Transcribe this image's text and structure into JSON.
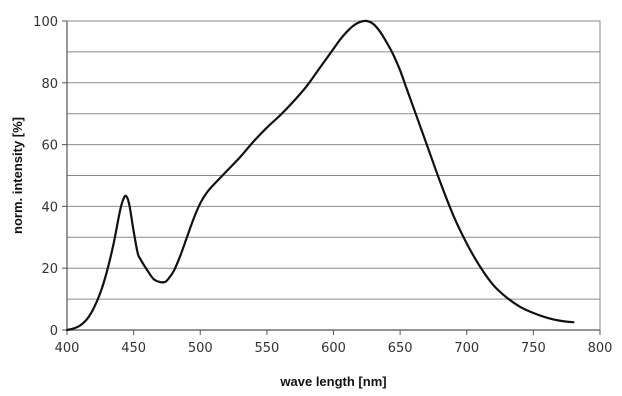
{
  "chart_data": {
    "type": "line",
    "title": "",
    "xlabel": "wave length [nm]",
    "ylabel": "norm. intensity [%]",
    "xlim": [
      400,
      800
    ],
    "ylim": [
      0,
      100
    ],
    "xticks": [
      400,
      450,
      500,
      550,
      600,
      650,
      700,
      750,
      800
    ],
    "yticks": [
      0,
      20,
      40,
      60,
      80,
      100
    ],
    "grid": {
      "horizontal": true,
      "vertical": false,
      "minor_horizontal_step": 10
    },
    "legend": "none",
    "series": [
      {
        "color": "#111111",
        "x": [
          400,
          405,
          410,
          415,
          420,
          425,
          430,
          435,
          440,
          443,
          445,
          447,
          450,
          453,
          455,
          460,
          465,
          470,
          473,
          475,
          480,
          485,
          490,
          495,
          500,
          505,
          510,
          520,
          530,
          540,
          550,
          560,
          570,
          580,
          590,
          600,
          605,
          610,
          615,
          620,
          625,
          630,
          635,
          640,
          645,
          650,
          655,
          660,
          665,
          670,
          680,
          690,
          700,
          710,
          720,
          730,
          740,
          750,
          760,
          770,
          780
        ],
        "y": [
          0,
          0.5,
          1.5,
          3.5,
          7,
          12,
          19,
          28,
          39,
          43,
          43,
          40,
          32,
          25,
          23,
          19.5,
          16.5,
          15.5,
          15.5,
          16,
          19,
          24,
          30,
          36,
          41,
          44.5,
          47,
          51.5,
          56,
          61,
          65.5,
          69.5,
          74,
          79,
          85,
          91,
          94,
          96.5,
          98.5,
          99.7,
          100,
          99,
          96.5,
          93,
          89,
          84,
          78,
          72,
          66,
          60,
          48,
          37,
          28,
          20.5,
          14.5,
          10.5,
          7.5,
          5.5,
          4,
          3,
          2.5
        ]
      }
    ]
  }
}
